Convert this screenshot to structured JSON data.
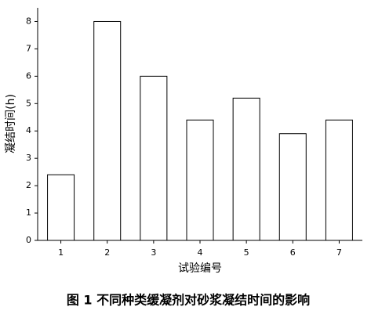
{
  "chart_data": {
    "type": "bar",
    "y_label": "凝结时间(h)",
    "x_label": "试验编号",
    "caption": "图 1   不同种类缓凝剂对砂浆凝结时间的影响",
    "categories": [
      "1",
      "2",
      "3",
      "4",
      "5",
      "6",
      "7"
    ],
    "values": [
      2.4,
      8,
      6,
      4.4,
      5.2,
      3.9,
      4.4
    ],
    "color": "#ffffff",
    "edge_color": "#000000",
    "ylim": [
      0,
      8.5
    ],
    "yticks": [
      0,
      1,
      2,
      3,
      4,
      5,
      6,
      7,
      8
    ],
    "grid": false
  }
}
